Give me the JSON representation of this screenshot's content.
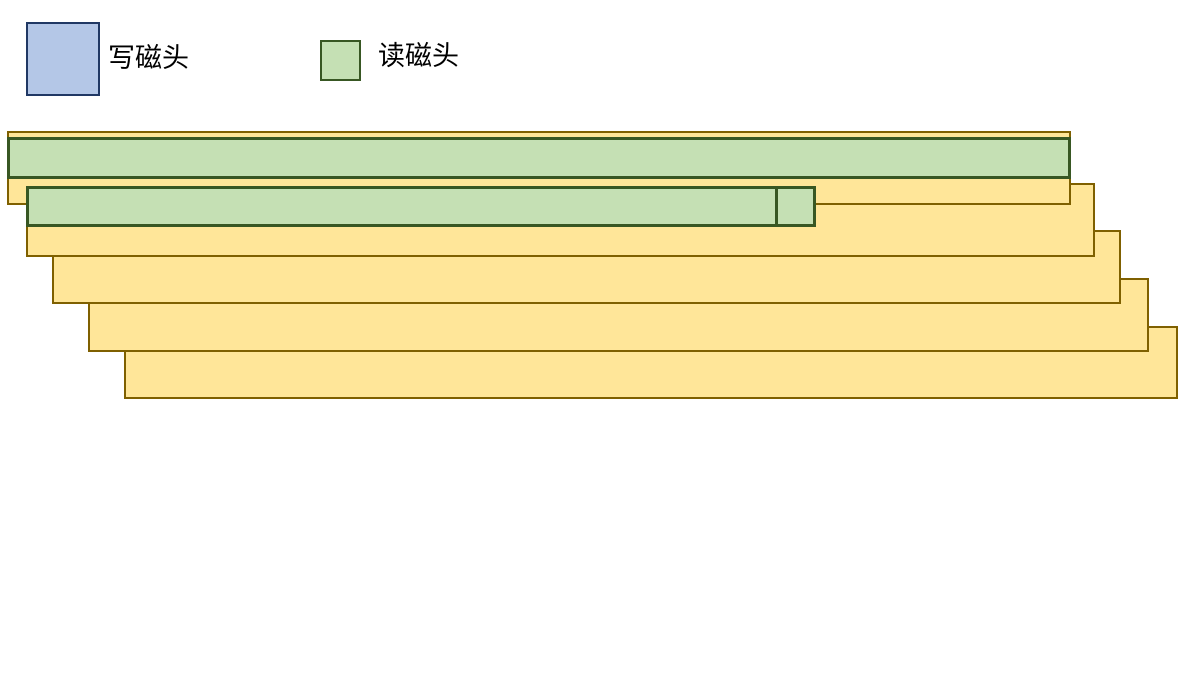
{
  "legend": {
    "items": [
      {
        "label": "写磁头",
        "color": "#B4C7E7",
        "border": "#203864"
      },
      {
        "label": "读磁头",
        "color": "#C5E0B4",
        "border": "#385723"
      }
    ]
  },
  "colors": {
    "track_fill": "#FFE699",
    "track_border": "#7F6000"
  }
}
